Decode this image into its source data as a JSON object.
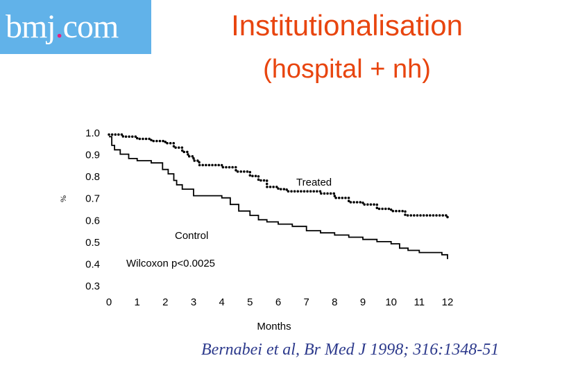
{
  "logo": {
    "prefix": "bmj",
    "dot": ".",
    "suffix": "com"
  },
  "title": "Institutionalisation",
  "subtitle": "(hospital + nh)",
  "citation": "Bernabei et al, Br Med J 1998; 316:1348-51",
  "chart_data": {
    "type": "line",
    "title": "Institutionalisation",
    "subtitle": "(hospital + nh)",
    "xlabel": "Months",
    "ylabel": "%",
    "xlim": [
      0,
      12
    ],
    "ylim": [
      0.3,
      1.0
    ],
    "x_ticks": [
      0,
      1,
      2,
      3,
      4,
      5,
      6,
      7,
      8,
      9,
      10,
      11,
      12
    ],
    "y_ticks": [
      "1.0",
      "0.9",
      "0.8",
      "0.7",
      "0.6",
      "0.5",
      "0.4",
      "0.3"
    ],
    "grid": false,
    "annotation": "Wilcoxon p<0.0025",
    "series": [
      {
        "name": "Treated",
        "color": "#000000",
        "style": "dotted-step",
        "x": [
          0,
          0.5,
          1,
          1.5,
          2,
          2.3,
          2.6,
          2.8,
          3,
          3.2,
          3.5,
          4,
          4.5,
          5,
          5.3,
          5.6,
          6,
          6.3,
          6.7,
          7.5,
          8,
          8.5,
          9,
          9.5,
          10,
          10.5,
          11,
          11.5,
          12
        ],
        "y": [
          0.99,
          0.98,
          0.97,
          0.96,
          0.95,
          0.93,
          0.91,
          0.89,
          0.87,
          0.85,
          0.85,
          0.84,
          0.82,
          0.8,
          0.78,
          0.75,
          0.74,
          0.73,
          0.73,
          0.72,
          0.7,
          0.68,
          0.67,
          0.65,
          0.64,
          0.62,
          0.62,
          0.62,
          0.61
        ]
      },
      {
        "name": "Control",
        "color": "#000000",
        "style": "solid-step",
        "x": [
          0,
          0.1,
          0.2,
          0.4,
          0.7,
          1,
          1.5,
          1.9,
          2.1,
          2.3,
          2.4,
          2.6,
          3,
          3.5,
          4,
          4.3,
          4.6,
          5,
          5.3,
          5.6,
          6,
          6.5,
          7,
          7.5,
          8,
          8.5,
          9,
          9.5,
          10,
          10.3,
          10.6,
          11,
          11.5,
          11.8,
          12
        ],
        "y": [
          0.98,
          0.94,
          0.92,
          0.9,
          0.88,
          0.87,
          0.86,
          0.83,
          0.81,
          0.78,
          0.76,
          0.74,
          0.71,
          0.71,
          0.7,
          0.67,
          0.64,
          0.62,
          0.6,
          0.59,
          0.58,
          0.57,
          0.55,
          0.54,
          0.53,
          0.52,
          0.51,
          0.5,
          0.49,
          0.47,
          0.46,
          0.45,
          0.45,
          0.44,
          0.42
        ]
      }
    ]
  }
}
